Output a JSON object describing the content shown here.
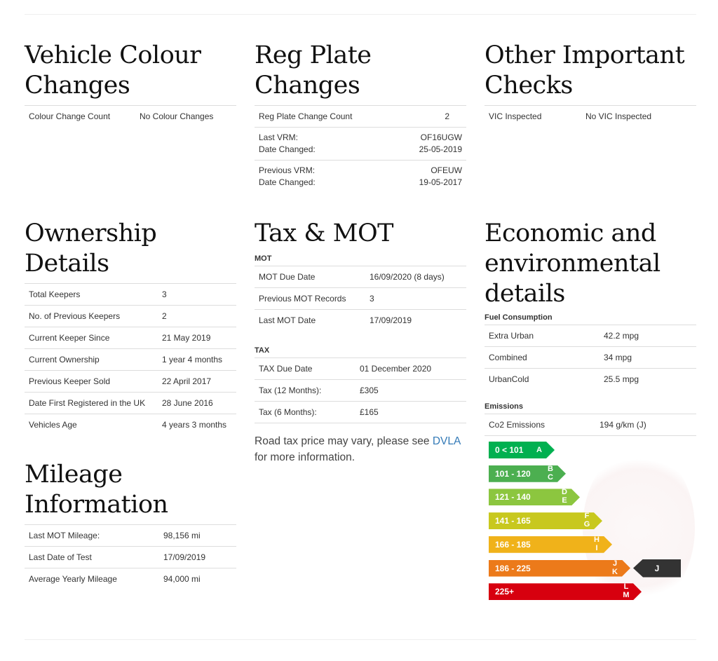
{
  "sections": {
    "colour": {
      "title": "Vehicle Colour Changes",
      "rows": [
        {
          "label": "Colour Change Count",
          "value": "No Colour Changes"
        }
      ]
    },
    "plates": {
      "title": "Reg Plate Changes",
      "count_label": "Reg Plate Change Count",
      "count_value": "2",
      "changes": [
        {
          "vrm_label": "Last VRM:",
          "vrm": "OF16UGW",
          "date_label": "Date Changed:",
          "date": "25-05-2019"
        },
        {
          "vrm_label": "Previous VRM:",
          "vrm": "OFEUW",
          "date_label": "Date Changed:",
          "date": "19-05-2017"
        }
      ]
    },
    "other": {
      "title": "Other Important Checks",
      "rows": [
        {
          "label": "VIC Inspected",
          "value": "No VIC Inspected"
        }
      ]
    },
    "ownership": {
      "title": "Ownership Details",
      "rows": [
        {
          "label": "Total Keepers",
          "value": "3"
        },
        {
          "label": "No. of Previous Keepers",
          "value": "2"
        },
        {
          "label": "Current Keeper Since",
          "value": "21 May 2019"
        },
        {
          "label": "Current Ownership",
          "value": "1 year 4 months"
        },
        {
          "label": "Previous Keeper Sold",
          "value": "22 April 2017"
        },
        {
          "label": "Date First Registered in the UK",
          "value": "28 June 2016"
        },
        {
          "label": "Vehicles Age",
          "value": "4 years 3 months"
        }
      ]
    },
    "mileage": {
      "title": "Mileage Information",
      "rows": [
        {
          "label": "Last MOT Mileage:",
          "value": "98,156 mi"
        },
        {
          "label": "Last Date of Test",
          "value": "17/09/2019"
        },
        {
          "label": "Average Yearly Mileage",
          "value": "94,000 mi"
        }
      ]
    },
    "taxmot": {
      "title": "Tax & MOT",
      "mot_heading": "MOT",
      "mot_rows": [
        {
          "label": "MOT Due Date",
          "value": "16/09/2020 (8 days)"
        },
        {
          "label": "Previous MOT Records",
          "value": "3"
        },
        {
          "label": "Last MOT Date",
          "value": "17/09/2019"
        }
      ],
      "tax_heading": "TAX",
      "tax_rows": [
        {
          "label": "TAX Due Date",
          "value": "01 December 2020"
        },
        {
          "label": "Tax (12 Months):",
          "value": "£305"
        },
        {
          "label": "Tax (6 Months):",
          "value": "£165"
        }
      ],
      "note_before": "Road tax price may vary, please see ",
      "note_link": "DVLA",
      "note_after": " for more information."
    },
    "economic": {
      "title": "Economic and environmental details",
      "fuel_heading": "Fuel Consumption",
      "fuel_rows": [
        {
          "label": "Extra Urban",
          "value": "42.2 mpg"
        },
        {
          "label": "Combined",
          "value": "34 mpg"
        },
        {
          "label": "UrbanCold",
          "value": "25.5 mpg"
        }
      ],
      "emissions_heading": "Emissions",
      "emissions_rows": [
        {
          "label": "Co2 Emissions",
          "value": "194 g/km (J)"
        }
      ],
      "emission_bands": [
        {
          "range": "0 < 101",
          "letters": "A",
          "color": "#00b050"
        },
        {
          "range": "101 - 120",
          "letters": "B C",
          "color": "#4caf50"
        },
        {
          "range": "121 - 140",
          "letters": "D E",
          "color": "#8cc63f"
        },
        {
          "range": "141 - 165",
          "letters": "F G",
          "color": "#c8c81e"
        },
        {
          "range": "166 - 185",
          "letters": "H I",
          "color": "#f0b21a"
        },
        {
          "range": "186 - 225",
          "letters": "J K",
          "color": "#ec7a1a"
        },
        {
          "range": "225+",
          "letters": "L M",
          "color": "#d7000f"
        }
      ],
      "current_band": "J",
      "marker_color": "#333333"
    }
  }
}
